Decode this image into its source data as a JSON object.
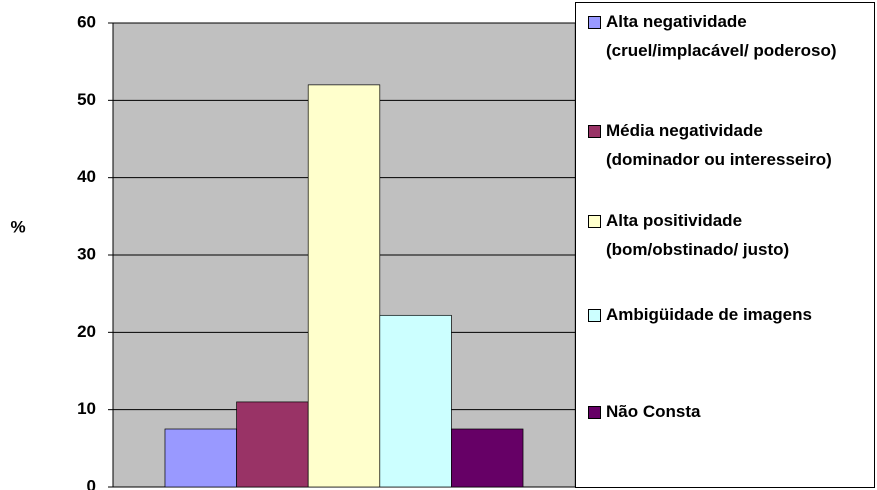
{
  "chart_data": {
    "type": "bar",
    "ylabel": "%",
    "categories": [
      null
    ],
    "series": [
      {
        "name": "Alta negatividade (cruel/implacável/ poderoso)",
        "color": "#9999ff",
        "values": [
          7.5
        ]
      },
      {
        "name": "Média negatividade (dominador ou interesseiro)",
        "color": "#993366",
        "values": [
          11
        ]
      },
      {
        "name": "Alta positividade (bom/obstinado/ justo)",
        "color": "#ffffcc",
        "values": [
          52
        ]
      },
      {
        "name": "Ambigüidade de imagens",
        "color": "#ccffff",
        "values": [
          22.2
        ]
      },
      {
        "name": "Não Consta",
        "color": "#660066",
        "values": [
          7.5
        ]
      }
    ],
    "ylim": [
      0,
      60
    ],
    "yticks": [
      0,
      10,
      20,
      30,
      40,
      50,
      60
    ],
    "grid": true,
    "legend": "right"
  }
}
